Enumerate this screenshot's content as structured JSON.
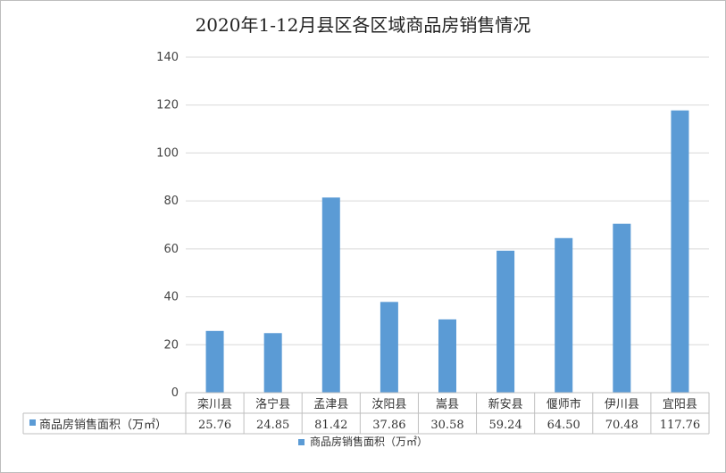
{
  "chart_data": {
    "type": "bar",
    "title": "2020年1-12月县区各区域商品房销售情况",
    "categories": [
      "栾川县",
      "洛宁县",
      "孟津县",
      "汝阳县",
      "嵩县",
      "新安县",
      "偃师市",
      "伊川县",
      "宜阳县"
    ],
    "series": [
      {
        "name": "商品房销售面积（万㎡）",
        "values": [
          25.76,
          24.85,
          81.42,
          37.86,
          30.58,
          59.24,
          64.5,
          70.48,
          117.76
        ]
      }
    ],
    "table_values": [
      "25.76",
      "24.85",
      "81.42",
      "37.86",
      "30.58",
      "59.24",
      "64.50",
      "70.48",
      "117.76"
    ],
    "ylim": [
      0,
      140
    ],
    "yticks": [
      0,
      20,
      40,
      60,
      80,
      100,
      120,
      140
    ],
    "grid": true,
    "legend_position": "bottom",
    "colors": {
      "bar": "#5b9bd5",
      "grid": "#d9d9d9",
      "table_border": "#bfbfbf"
    }
  }
}
